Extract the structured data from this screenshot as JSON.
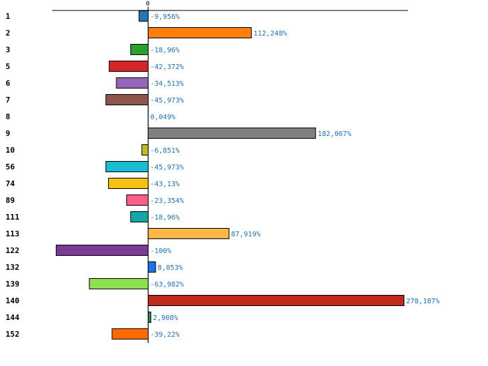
{
  "chart_data": {
    "type": "bar",
    "orientation": "horizontal",
    "zero_tick_label": "0",
    "xlim": [
      -100,
      278.187
    ],
    "categories": [
      "1",
      "2",
      "3",
      "5",
      "6",
      "7",
      "8",
      "9",
      "10",
      "56",
      "74",
      "89",
      "111",
      "113",
      "122",
      "132",
      "139",
      "140",
      "144",
      "152"
    ],
    "values": [
      -9.956,
      112.248,
      -18.96,
      -42.372,
      -34.513,
      -45.973,
      0.049,
      182.067,
      -6.851,
      -45.973,
      -43.13,
      -23.354,
      -18.96,
      87.919,
      -100,
      8.053,
      -63.982,
      278.187,
      2.908,
      -39.22
    ],
    "value_labels": [
      "-9,956%",
      "112,248%",
      "-18,96%",
      "-42,372%",
      "-34,513%",
      "-45,973%",
      "0,049%",
      "182,067%",
      "-6,851%",
      "-45,973%",
      "-43,13%",
      "-23,354%",
      "-18,96%",
      "87,919%",
      "-100%",
      "8,053%",
      "-63,982%",
      "278,187%",
      "2,908%",
      "-39,22%"
    ],
    "colors": [
      "#1f77b4",
      "#ff7f0e",
      "#2ca02c",
      "#d62728",
      "#9467bd",
      "#8c564b",
      "#e377c2",
      "#7f7f7f",
      "#bcbd22",
      "#17becf",
      "#f5c211",
      "#ff5c8a",
      "#13a8a8",
      "#fbb848",
      "#7b3a96",
      "#1a73e8",
      "#8ee04f",
      "#c02a1a",
      "#2e8b57",
      "#ff6a00"
    ]
  }
}
